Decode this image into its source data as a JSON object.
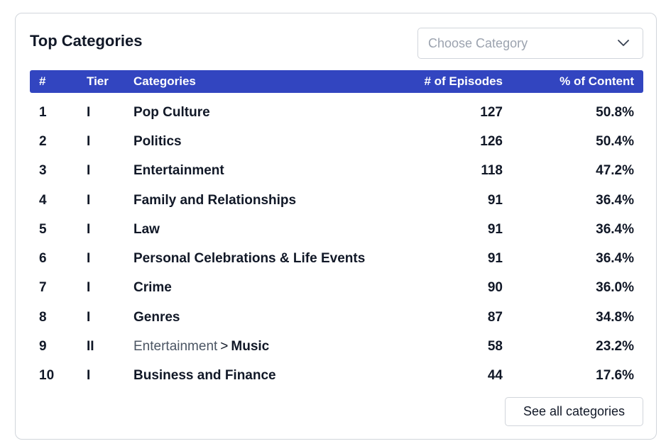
{
  "card": {
    "title": "Top Categories",
    "select": {
      "placeholder": "Choose Category",
      "icon": "chevron-down-icon"
    },
    "see_all_label": "See all categories"
  },
  "table": {
    "headers": {
      "num": "#",
      "tier": "Tier",
      "category": "Categories",
      "episodes": "# of Episodes",
      "percent": "% of Content"
    },
    "rows": [
      {
        "num": "1",
        "tier": "I",
        "parent": "",
        "category": "Pop Culture",
        "episodes": "127",
        "percent": "50.8%"
      },
      {
        "num": "2",
        "tier": "I",
        "parent": "",
        "category": "Politics",
        "episodes": "126",
        "percent": "50.4%"
      },
      {
        "num": "3",
        "tier": "I",
        "parent": "",
        "category": "Entertainment",
        "episodes": "118",
        "percent": "47.2%"
      },
      {
        "num": "4",
        "tier": "I",
        "parent": "",
        "category": "Family and Relationships",
        "episodes": "91",
        "percent": "36.4%"
      },
      {
        "num": "5",
        "tier": "I",
        "parent": "",
        "category": "Law",
        "episodes": "91",
        "percent": "36.4%"
      },
      {
        "num": "6",
        "tier": "I",
        "parent": "",
        "category": "Personal Celebrations & Life Events",
        "episodes": "91",
        "percent": "36.4%"
      },
      {
        "num": "7",
        "tier": "I",
        "parent": "",
        "category": "Crime",
        "episodes": "90",
        "percent": "36.0%"
      },
      {
        "num": "8",
        "tier": "I",
        "parent": "",
        "category": "Genres",
        "episodes": "87",
        "percent": "34.8%"
      },
      {
        "num": "9",
        "tier": "II",
        "parent": "Entertainment",
        "separator": ">",
        "category": "Music",
        "episodes": "58",
        "percent": "23.2%"
      },
      {
        "num": "10",
        "tier": "I",
        "parent": "",
        "category": "Business and Finance",
        "episodes": "44",
        "percent": "17.6%"
      }
    ]
  },
  "colors": {
    "header_bg": "#3245c0",
    "border": "#d1d5db",
    "text": "#111827",
    "muted": "#9ca3af"
  }
}
